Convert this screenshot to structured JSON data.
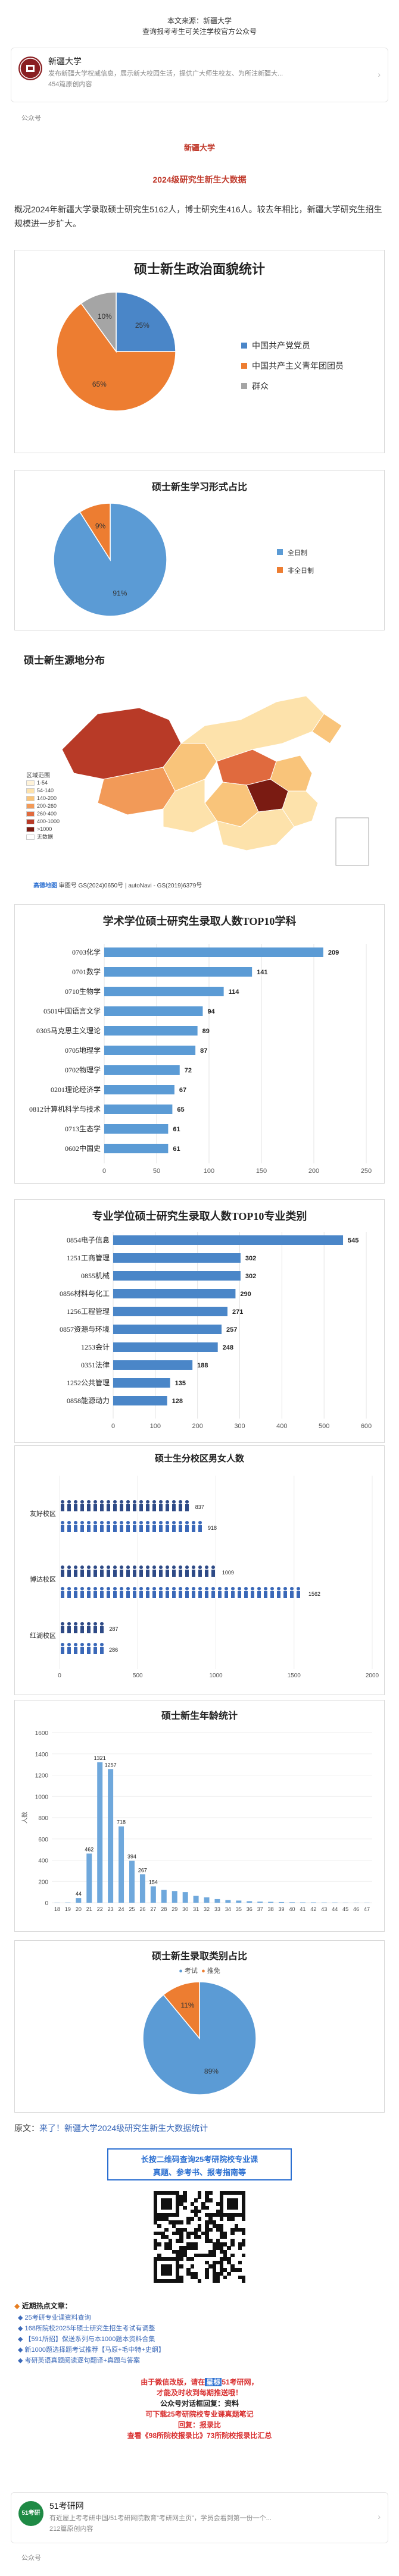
{
  "source": {
    "line1": "本文来源：新疆大学",
    "line2": "查询报考考生可关注学校官方公众号"
  },
  "account_top": {
    "name": "新疆大学",
    "desc": "发布新疆大学权威信息，展示新大校园生活，提供广大师生校友、为所注新疆大...",
    "followers": "454篇原创内容",
    "tag": "公众号"
  },
  "article": {
    "school": "新疆大学",
    "subtitle": "2024级研究生新生大数据",
    "intro": "概况2024年新疆大学录取硕士研究生5162人，博士研究生416人。较去年相比，新疆大学研究生招生规模进一步扩大。"
  },
  "charts": {
    "political": {
      "title": "硕士新生政治面貌统计",
      "chart_data": {
        "type": "pie",
        "slices": [
          {
            "label": "中国共产党党员",
            "value": 25,
            "color": "#4a86c8"
          },
          {
            "label": "中国共产主义青年团团员",
            "value": 65,
            "color": "#ed7d31"
          },
          {
            "label": "群众",
            "value": 10,
            "color": "#a5a5a5"
          }
        ]
      },
      "pct_labels": [
        "25%",
        "65%",
        "10%"
      ]
    },
    "study_form": {
      "title": "硕士新生学习形式占比",
      "chart_data": {
        "type": "pie",
        "slices": [
          {
            "label": "全日制",
            "value": 91,
            "color": "#5b9bd5"
          },
          {
            "label": "非全日制",
            "value": 9,
            "color": "#ed7d31"
          }
        ]
      },
      "pct_labels": [
        "91%",
        "9%"
      ]
    },
    "origin_map": {
      "title": "硕士新生源地分布",
      "legend_title": "区域范围",
      "legend_items": [
        {
          "label": "1-54",
          "color": "#fff3d9"
        },
        {
          "label": "54-140",
          "color": "#fde2ab"
        },
        {
          "label": "140-200",
          "color": "#f9c47a"
        },
        {
          "label": "200-260",
          "color": "#f29a58"
        },
        {
          "label": "260-400",
          "color": "#e06a3e"
        },
        {
          "label": "400-1000",
          "color": "#b83a27"
        },
        {
          "label": ">1000",
          "color": "#7a1b12"
        },
        {
          "label": "无数据",
          "color": "#ffffff"
        }
      ],
      "credit": "审图号 GS(2024)0650号 | autoNavi - GS(2019)6379号",
      "logo": "高德地图"
    },
    "academic_top10": {
      "title": "学术学位硕士研究生录取人数TOP10学科",
      "chart_data": {
        "type": "bar",
        "orientation": "horizontal",
        "categories": [
          "0703化学",
          "0701数学",
          "0710生物学",
          "0501中国语言文学",
          "0305马克思主义理论",
          "0705地理学",
          "0702物理学",
          "0201理论经济学",
          "0812计算机科学与技术",
          "0713生态学",
          "0602中国史"
        ],
        "values": [
          209,
          141,
          114,
          94,
          89,
          87,
          72,
          67,
          65,
          61,
          61
        ],
        "xlim": [
          0,
          250
        ],
        "xticks": [
          "0",
          "50",
          "100",
          "150",
          "200",
          "250"
        ],
        "color": "#5b9bd5"
      }
    },
    "professional_top10": {
      "title": "专业学位硕士研究生录取人数TOP10专业类别",
      "chart_data": {
        "type": "bar",
        "orientation": "horizontal",
        "categories": [
          "0854电子信息",
          "1251工商管理",
          "0855机械",
          "0856材料与化工",
          "1256工程管理",
          "0857资源与环境",
          "1253会计",
          "0351法律",
          "1252公共管理",
          "0858能源动力"
        ],
        "values": [
          545,
          302,
          302,
          290,
          271,
          257,
          248,
          188,
          135,
          128
        ],
        "xlim": [
          0,
          600
        ],
        "xticks": [
          "0",
          "100",
          "200",
          "300",
          "400",
          "500",
          "600"
        ],
        "color": "#4a86c8"
      }
    },
    "gender_campus": {
      "title": "硕士生分校区男女人数",
      "chart_data": {
        "type": "bar",
        "orientation": "horizontal",
        "categories": [
          "友好校区",
          "博达校区",
          "红湖校区"
        ],
        "series": [
          {
            "name": "男",
            "values": [
              837,
              1009,
              287
            ]
          },
          {
            "name": "女",
            "values": [
              918,
              1562,
              286
            ]
          }
        ],
        "xlim": [
          0,
          2000
        ],
        "xticks": [
          "0",
          "500",
          "1000",
          "1500",
          "2000"
        ]
      },
      "value_labels": [
        [
          "837",
          "918"
        ],
        [
          "1009",
          "1562"
        ],
        [
          "287",
          "286"
        ]
      ]
    },
    "age": {
      "title": "硕士新生年龄统计",
      "chart_data": {
        "type": "bar",
        "x": [
          "18",
          "19",
          "20",
          "21",
          "22",
          "23",
          "24",
          "25",
          "26",
          "27",
          "28",
          "29",
          "30",
          "31",
          "32",
          "33",
          "34",
          "35",
          "36",
          "37",
          "38",
          "39",
          "40",
          "41",
          "42",
          "43",
          "44",
          "45",
          "46",
          "47"
        ],
        "values": [
          1,
          2,
          44,
          462,
          1321,
          1257,
          718,
          394,
          267,
          154,
          120,
          110,
          100,
          64,
          50,
          34,
          25,
          20,
          14,
          10,
          8,
          6,
          4,
          3,
          3,
          2,
          2,
          1,
          1,
          1
        ],
        "ylim": [
          0,
          1600
        ],
        "yticks": [
          "0",
          "200",
          "400",
          "600",
          "800",
          "1000",
          "1200",
          "1400",
          "1600"
        ],
        "ylabel": "人数",
        "color": "#6fa8dc"
      },
      "shown_labels": {
        "2": "44",
        "3": "462",
        "4": "1321",
        "5": "1257",
        "6": "718",
        "7": "394",
        "8": "267",
        "9": "154"
      }
    },
    "admit_type": {
      "title": "硕士新生录取类别占比",
      "legend": [
        "考试",
        "推免"
      ],
      "chart_data": {
        "type": "pie",
        "slices": [
          {
            "label": "考试",
            "value": 89,
            "color": "#5b9bd5"
          },
          {
            "label": "推免",
            "value": 11,
            "color": "#ed7d31"
          }
        ]
      },
      "pct_labels": [
        "89%",
        "11%"
      ]
    }
  },
  "source_text": {
    "prefix": "原文：",
    "link": "来了！新疆大学2024级研究生新生大数据统计"
  },
  "qr_banner": {
    "line1": "长按二维码查询25考研院校专业课",
    "line2": "真题、参考书、报考指南等"
  },
  "recommend": {
    "heading": "近期热点文章：",
    "items": [
      "25考研专业课资料查询",
      "168所院校2025年硕士研究生招生考试有调整",
      "【591所招】保送系列与本1000题本资料合集",
      "新1000题选择题考试推荐【马原+毛中特+史纲】",
      "考研英语真题阅读逐句翻译+真题与答案"
    ],
    "promo1": "由于微信改版，请在",
    "promo1b": "星标",
    "promo1c": "51考研网，",
    "promo2": "才能及时收到每期推送哦！",
    "promo3": "公众号对话框回复：资料",
    "promo4": "可下载25考研院校专业课真题笔记",
    "promo5": "回复：报录比",
    "promo6": "查看《98所院校报录比》73所院校报录比汇总"
  },
  "account_bottom": {
    "name": "51考研网",
    "desc": "有近屋上考考研中国/51考研网院教育“考研网主页”，学员会看到第一份一个...",
    "followers": "212篇原创内容",
    "tag": "公众号",
    "avatar": "51考研"
  }
}
